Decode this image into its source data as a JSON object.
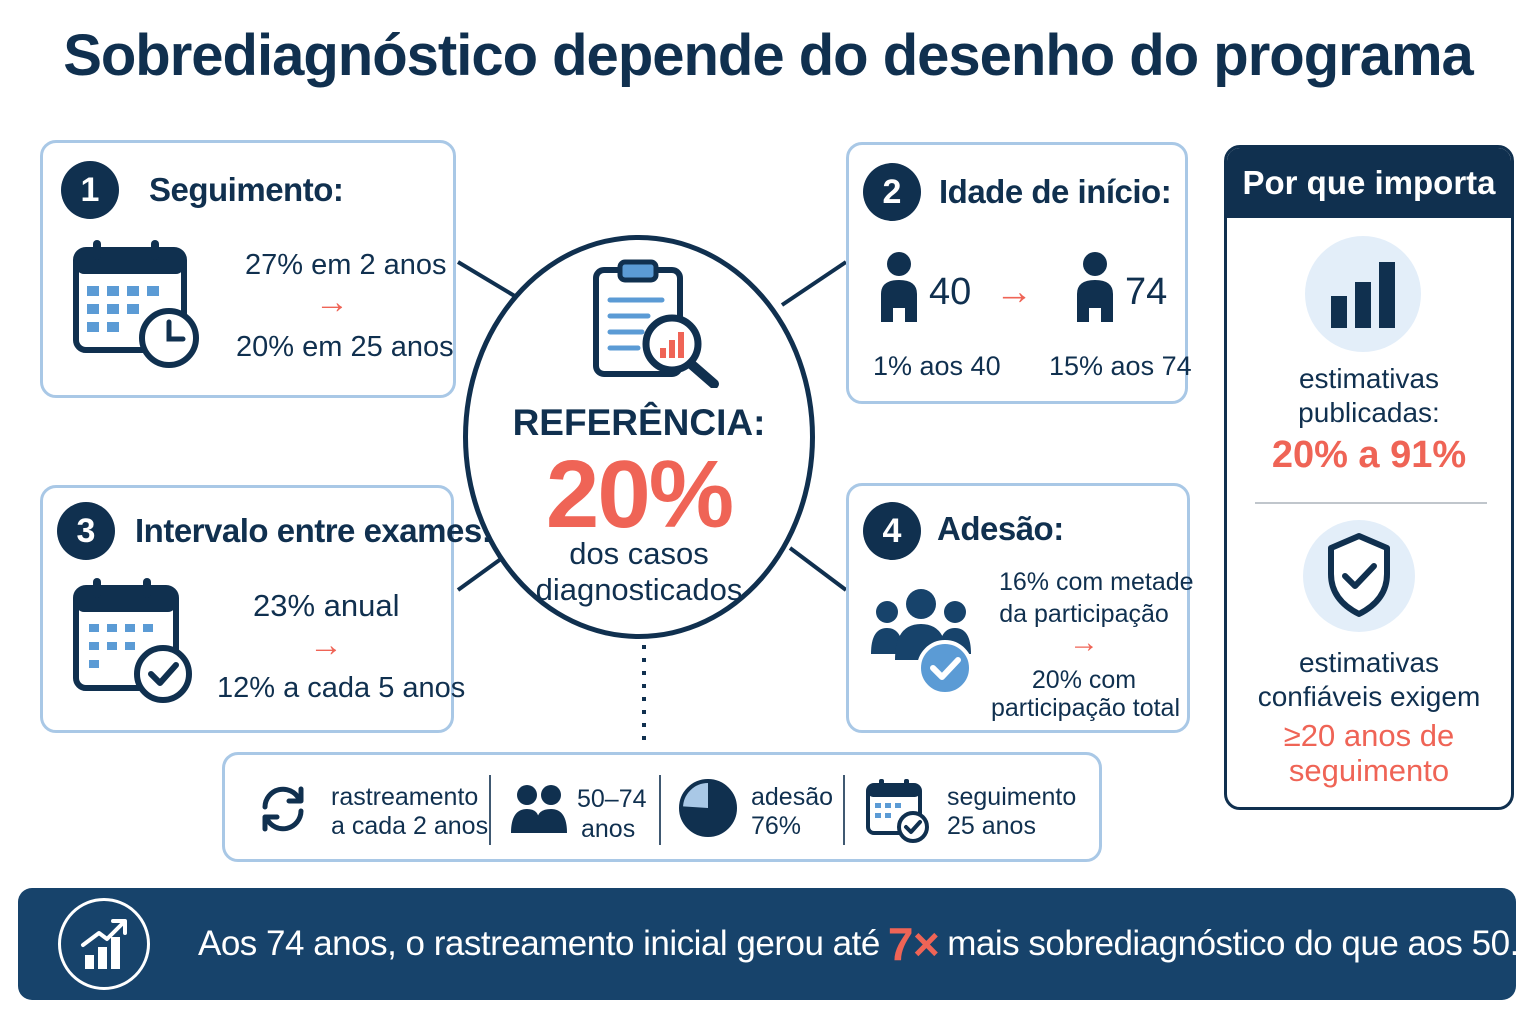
{
  "title": "Sobrediagnóstico depende do desenho do programa",
  "colors": {
    "navy": "#10304f",
    "accent_red": "#ef6456",
    "light_blue": "#a9c8e6",
    "icon_blue": "#5b9bd5"
  },
  "center": {
    "label": "REFERÊNCIA:",
    "value": "20%",
    "sub_line1": "dos casos",
    "sub_line2": "diagnosticados",
    "icon": "clipboard-magnifier-icon"
  },
  "cards": {
    "followup": {
      "number": "1",
      "title": "Seguimento:",
      "line1": "27% em 2 anos",
      "arrow": "→",
      "line2": "20% em 25 anos",
      "icon": "calendar-clock-icon"
    },
    "start_age": {
      "number": "2",
      "title": "Idade de início:",
      "age_from": "40",
      "arrow": "→",
      "age_to": "74",
      "stat_from": "1% aos 40",
      "stat_to": "15% aos 74",
      "icon": "person-icon"
    },
    "interval": {
      "number": "3",
      "title": "Intervalo entre exames:",
      "line1": "23% anual",
      "arrow": "→",
      "line2": "12% a cada 5 anos",
      "icon": "calendar-check-icon"
    },
    "adherence": {
      "number": "4",
      "title": "Adesão:",
      "line1a": "16% com metade",
      "line1b": "da participação",
      "arrow": "→",
      "line2a": "20% com",
      "line2b": "participação total",
      "icon": "people-check-icon"
    }
  },
  "side_panel": {
    "header": "Por que importa",
    "block1_line1": "estimativas",
    "block1_line2": "publicadas:",
    "block1_value": "20% a 91%",
    "block2_line1": "estimativas",
    "block2_line2": "confiáveis exigem",
    "block2_value_line1": "≥20 anos de",
    "block2_value_line2": "seguimento",
    "icons": [
      "bar-chart-icon",
      "shield-check-icon"
    ]
  },
  "base_bar": {
    "items": [
      {
        "line1": "rastreamento",
        "line2": "a cada 2 anos",
        "icon": "refresh-icon"
      },
      {
        "line1": "50–74",
        "line2": "anos",
        "icon": "people-icon"
      },
      {
        "line1": "adesão",
        "line2": "76%",
        "icon": "pie-chart-icon",
        "value": 76
      },
      {
        "line1": "seguimento",
        "line2": "25 anos",
        "icon": "calendar-check-icon"
      }
    ]
  },
  "footer": {
    "text_before": "Aos 74 anos, o rastreamento inicial gerou até",
    "emphasis": "7×",
    "text_after": "mais sobrediagnóstico do que aos 50.",
    "icon": "growth-chart-icon"
  }
}
